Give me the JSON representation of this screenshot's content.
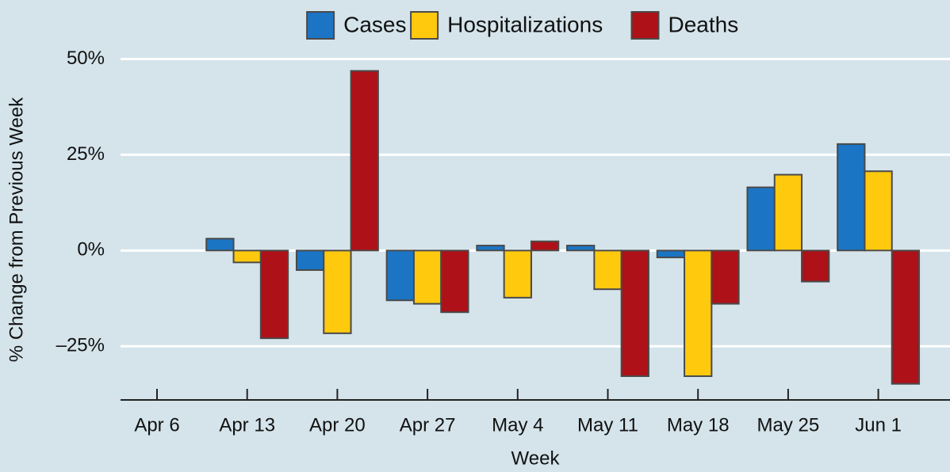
{
  "chart_data": {
    "type": "bar",
    "xlabel": "Week",
    "ylabel": "% Change from Previous Week",
    "categories": [
      "Apr 6",
      "Apr 13",
      "Apr 20",
      "Apr 27",
      "May 4",
      "May 11",
      "May 18",
      "May 25",
      "Jun 1"
    ],
    "series": [
      {
        "name": "Cases",
        "color": "#1b75c4",
        "values": [
          null,
          3.1,
          -5.1,
          -13,
          1.3,
          1.3,
          -1.8,
          16.5,
          27.8
        ]
      },
      {
        "name": "Hospitalizations",
        "color": "#ffc90e",
        "values": [
          null,
          -3.1,
          -21.6,
          -13.9,
          -12.3,
          -10.1,
          -32.8,
          19.8,
          20.7
        ]
      },
      {
        "name": "Deaths",
        "color": "#ae1117",
        "values": [
          null,
          -22.9,
          46.9,
          -16.1,
          2.4,
          -32.8,
          -13.9,
          -8.1,
          -34.8
        ]
      }
    ],
    "ylim": [
      -39,
      53
    ],
    "yticks": [
      {
        "value": -25,
        "label": "–25%"
      },
      {
        "value": 0,
        "label": "0%"
      },
      {
        "value": 25,
        "label": "25%"
      },
      {
        "value": 50,
        "label": "50%"
      }
    ],
    "grid": true,
    "legend": "top"
  }
}
